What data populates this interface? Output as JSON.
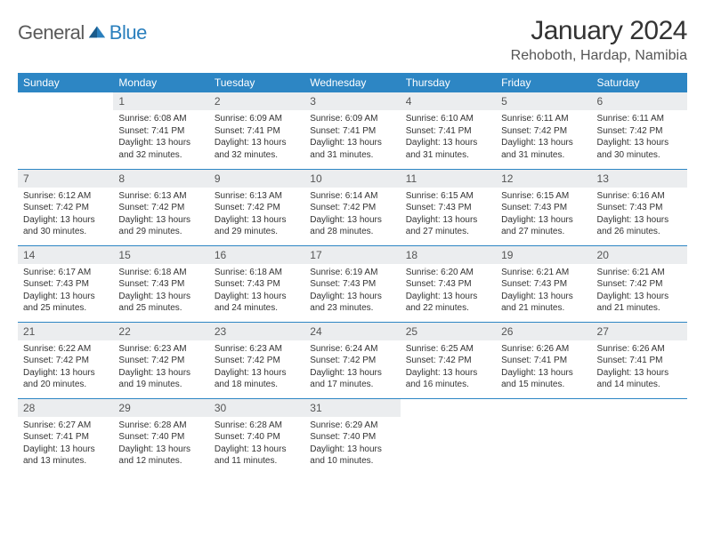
{
  "brand": {
    "part1": "General",
    "part2": "Blue"
  },
  "title": "January 2024",
  "location": "Rehoboth, Hardap, Namibia",
  "colors": {
    "header_bg": "#2d86c4",
    "header_fg": "#ffffff",
    "row_border": "#2d86c4",
    "daynum_bg": "#ebedef",
    "logo_gray": "#5a5a5a",
    "logo_blue": "#2a7fbd"
  },
  "weekdays": [
    "Sunday",
    "Monday",
    "Tuesday",
    "Wednesday",
    "Thursday",
    "Friday",
    "Saturday"
  ],
  "first_weekday_index": 1,
  "days": [
    {
      "n": 1,
      "sunrise": "6:08 AM",
      "sunset": "7:41 PM",
      "daylight": "13 hours and 32 minutes."
    },
    {
      "n": 2,
      "sunrise": "6:09 AM",
      "sunset": "7:41 PM",
      "daylight": "13 hours and 32 minutes."
    },
    {
      "n": 3,
      "sunrise": "6:09 AM",
      "sunset": "7:41 PM",
      "daylight": "13 hours and 31 minutes."
    },
    {
      "n": 4,
      "sunrise": "6:10 AM",
      "sunset": "7:41 PM",
      "daylight": "13 hours and 31 minutes."
    },
    {
      "n": 5,
      "sunrise": "6:11 AM",
      "sunset": "7:42 PM",
      "daylight": "13 hours and 31 minutes."
    },
    {
      "n": 6,
      "sunrise": "6:11 AM",
      "sunset": "7:42 PM",
      "daylight": "13 hours and 30 minutes."
    },
    {
      "n": 7,
      "sunrise": "6:12 AM",
      "sunset": "7:42 PM",
      "daylight": "13 hours and 30 minutes."
    },
    {
      "n": 8,
      "sunrise": "6:13 AM",
      "sunset": "7:42 PM",
      "daylight": "13 hours and 29 minutes."
    },
    {
      "n": 9,
      "sunrise": "6:13 AM",
      "sunset": "7:42 PM",
      "daylight": "13 hours and 29 minutes."
    },
    {
      "n": 10,
      "sunrise": "6:14 AM",
      "sunset": "7:42 PM",
      "daylight": "13 hours and 28 minutes."
    },
    {
      "n": 11,
      "sunrise": "6:15 AM",
      "sunset": "7:43 PM",
      "daylight": "13 hours and 27 minutes."
    },
    {
      "n": 12,
      "sunrise": "6:15 AM",
      "sunset": "7:43 PM",
      "daylight": "13 hours and 27 minutes."
    },
    {
      "n": 13,
      "sunrise": "6:16 AM",
      "sunset": "7:43 PM",
      "daylight": "13 hours and 26 minutes."
    },
    {
      "n": 14,
      "sunrise": "6:17 AM",
      "sunset": "7:43 PM",
      "daylight": "13 hours and 25 minutes."
    },
    {
      "n": 15,
      "sunrise": "6:18 AM",
      "sunset": "7:43 PM",
      "daylight": "13 hours and 25 minutes."
    },
    {
      "n": 16,
      "sunrise": "6:18 AM",
      "sunset": "7:43 PM",
      "daylight": "13 hours and 24 minutes."
    },
    {
      "n": 17,
      "sunrise": "6:19 AM",
      "sunset": "7:43 PM",
      "daylight": "13 hours and 23 minutes."
    },
    {
      "n": 18,
      "sunrise": "6:20 AM",
      "sunset": "7:43 PM",
      "daylight": "13 hours and 22 minutes."
    },
    {
      "n": 19,
      "sunrise": "6:21 AM",
      "sunset": "7:43 PM",
      "daylight": "13 hours and 21 minutes."
    },
    {
      "n": 20,
      "sunrise": "6:21 AM",
      "sunset": "7:42 PM",
      "daylight": "13 hours and 21 minutes."
    },
    {
      "n": 21,
      "sunrise": "6:22 AM",
      "sunset": "7:42 PM",
      "daylight": "13 hours and 20 minutes."
    },
    {
      "n": 22,
      "sunrise": "6:23 AM",
      "sunset": "7:42 PM",
      "daylight": "13 hours and 19 minutes."
    },
    {
      "n": 23,
      "sunrise": "6:23 AM",
      "sunset": "7:42 PM",
      "daylight": "13 hours and 18 minutes."
    },
    {
      "n": 24,
      "sunrise": "6:24 AM",
      "sunset": "7:42 PM",
      "daylight": "13 hours and 17 minutes."
    },
    {
      "n": 25,
      "sunrise": "6:25 AM",
      "sunset": "7:42 PM",
      "daylight": "13 hours and 16 minutes."
    },
    {
      "n": 26,
      "sunrise": "6:26 AM",
      "sunset": "7:41 PM",
      "daylight": "13 hours and 15 minutes."
    },
    {
      "n": 27,
      "sunrise": "6:26 AM",
      "sunset": "7:41 PM",
      "daylight": "13 hours and 14 minutes."
    },
    {
      "n": 28,
      "sunrise": "6:27 AM",
      "sunset": "7:41 PM",
      "daylight": "13 hours and 13 minutes."
    },
    {
      "n": 29,
      "sunrise": "6:28 AM",
      "sunset": "7:40 PM",
      "daylight": "13 hours and 12 minutes."
    },
    {
      "n": 30,
      "sunrise": "6:28 AM",
      "sunset": "7:40 PM",
      "daylight": "13 hours and 11 minutes."
    },
    {
      "n": 31,
      "sunrise": "6:29 AM",
      "sunset": "7:40 PM",
      "daylight": "13 hours and 10 minutes."
    }
  ],
  "labels": {
    "sunrise": "Sunrise:",
    "sunset": "Sunset:",
    "daylight": "Daylight:"
  }
}
